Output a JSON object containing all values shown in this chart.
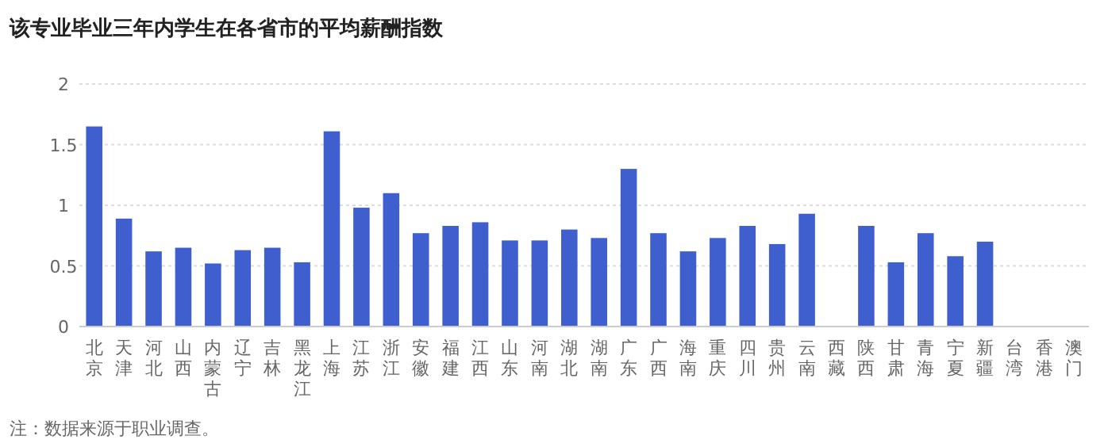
{
  "chart_data": {
    "type": "bar",
    "title": "该专业毕业三年内学生在各省市的平均薪酬指数",
    "categories": [
      "北京",
      "天津",
      "河北",
      "山西",
      "内蒙古",
      "辽宁",
      "吉林",
      "黑龙江",
      "上海",
      "江苏",
      "浙江",
      "安徽",
      "福建",
      "江西",
      "山东",
      "河南",
      "湖北",
      "湖南",
      "广东",
      "广西",
      "海南",
      "重庆",
      "四川",
      "贵州",
      "云南",
      "西藏",
      "陕西",
      "甘肃",
      "青海",
      "宁夏",
      "新疆",
      "台湾",
      "香港",
      "澳门"
    ],
    "values": [
      1.65,
      0.89,
      0.62,
      0.65,
      0.52,
      0.63,
      0.65,
      0.53,
      1.61,
      0.98,
      1.1,
      0.77,
      0.83,
      0.86,
      0.71,
      0.71,
      0.8,
      0.73,
      1.3,
      0.77,
      0.62,
      0.73,
      0.83,
      0.68,
      0.93,
      null,
      0.83,
      0.53,
      0.77,
      0.58,
      0.7,
      null,
      null,
      null
    ],
    "color": "#3f5fcf",
    "ylim": [
      0,
      2
    ],
    "yticks": [
      0,
      0.5,
      1,
      1.5,
      2
    ],
    "grid": "y",
    "annotations": [
      "注：数据来源于职业调查。"
    ]
  }
}
